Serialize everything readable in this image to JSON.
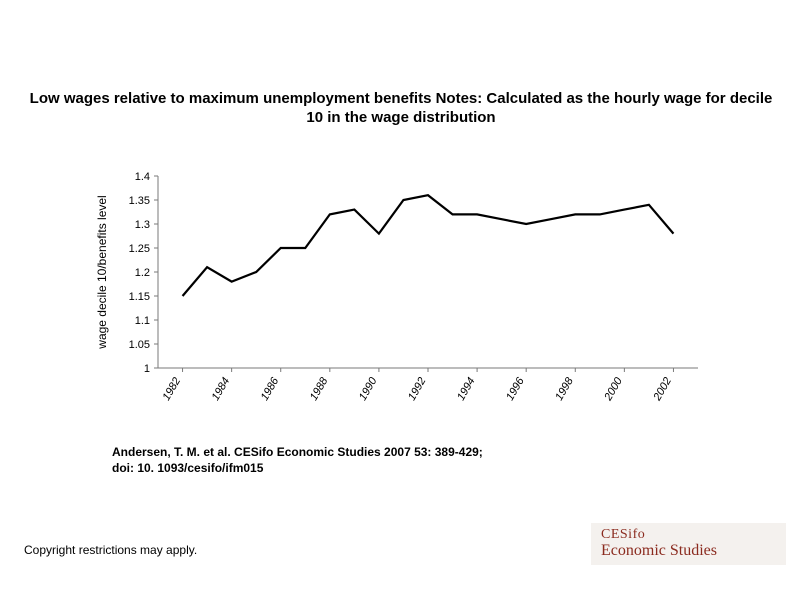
{
  "title": "Low wages relative to maximum unemployment benefits Notes: Calculated as the hourly wage for decile 10 in the wage distribution",
  "citation_line1": "Andersen, T. M. et al. CESifo Economic Studies 2007 53: 389-429;",
  "citation_line2": "doi: 10. 1093/cesifo/ifm015",
  "copyright": "Copyright restrictions may apply.",
  "logo": {
    "line1": "CESifo",
    "line2": "Economic Studies",
    "color": "#8b2b1f",
    "bg": "#f4f1ee"
  },
  "chart": {
    "type": "line",
    "y_label": "wage decile 10/benefits level",
    "y_min": 1.0,
    "y_max": 1.4,
    "y_tick_step": 0.05,
    "y_ticks": [
      1,
      1.05,
      1.1,
      1.15,
      1.2,
      1.25,
      1.3,
      1.35,
      1.4
    ],
    "y_tick_labels": [
      "1",
      "1.05",
      "1.1",
      "1.15",
      "1.2",
      "1.25",
      "1.3",
      "1.35",
      "1.4"
    ],
    "x_ticks": [
      1982,
      1984,
      1986,
      1988,
      1990,
      1992,
      1994,
      1996,
      1998,
      2000,
      2002
    ],
    "x_tick_labels": [
      "1982",
      "1984",
      "1986",
      "1988",
      "1990",
      "1992",
      "1994",
      "1996",
      "1998",
      "2000",
      "2002"
    ],
    "x_min": 1981,
    "x_max": 2003,
    "data": {
      "x": [
        1982,
        1983,
        1984,
        1985,
        1986,
        1987,
        1988,
        1989,
        1990,
        1991,
        1992,
        1993,
        1994,
        1995,
        1996,
        1997,
        1998,
        1999,
        2000,
        2001,
        2002
      ],
      "y": [
        1.15,
        1.21,
        1.18,
        1.2,
        1.25,
        1.25,
        1.32,
        1.33,
        1.28,
        1.35,
        1.36,
        1.32,
        1.32,
        1.31,
        1.3,
        1.31,
        1.32,
        1.32,
        1.33,
        1.34,
        1.28
      ]
    },
    "colors": {
      "axis": "#7a7a7a",
      "line": "#000000",
      "background": "#ffffff",
      "text": "#000000"
    },
    "line_width": 2.2,
    "tick_fontsize": 11,
    "axis_title_fontsize": 12,
    "x_label_rotation": -60
  }
}
